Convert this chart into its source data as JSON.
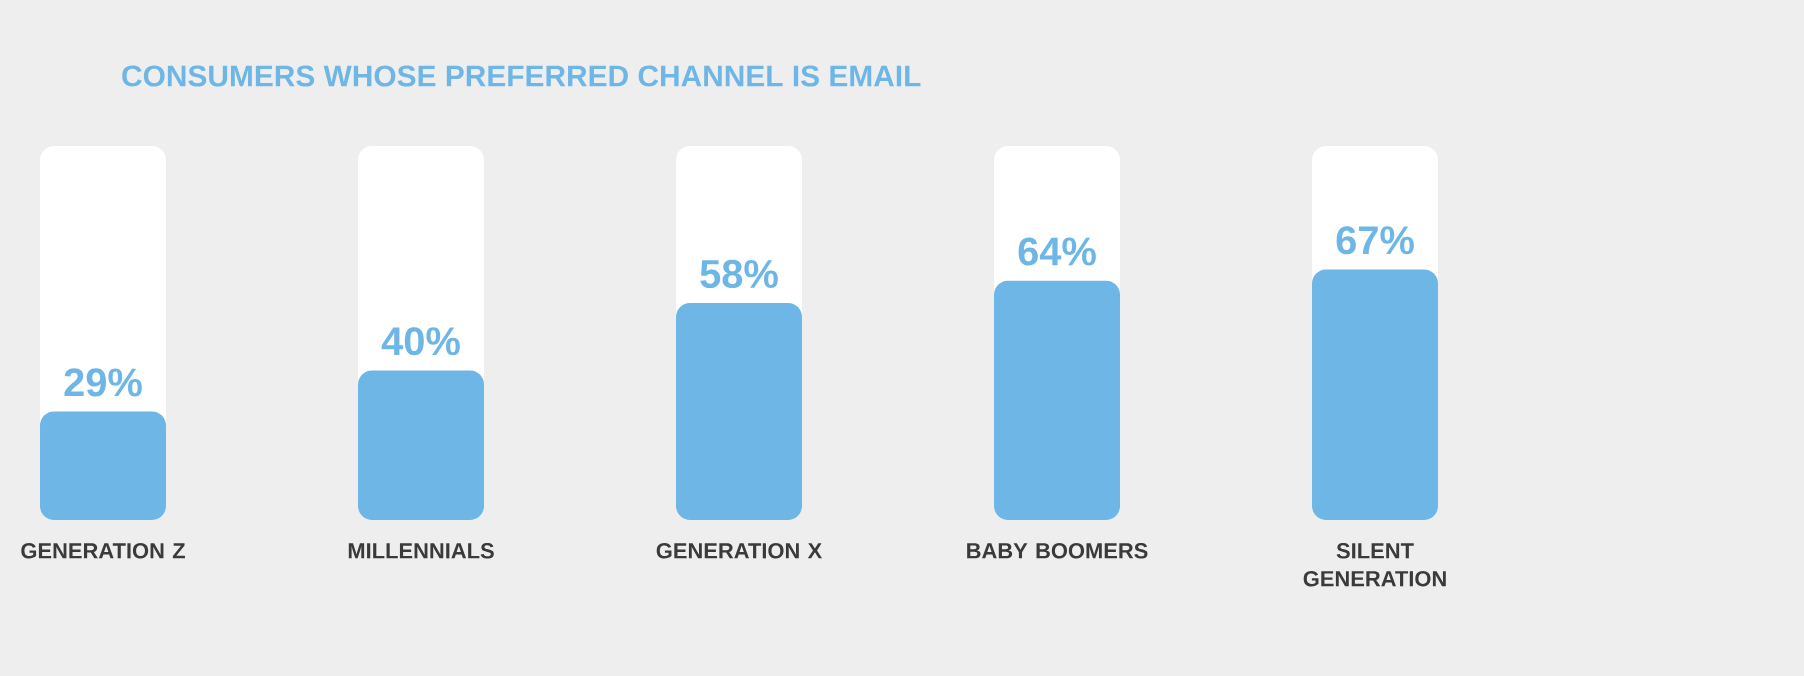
{
  "chart_data": {
    "type": "bar",
    "title": "CONSUMERS WHOSE PREFERRED CHANNEL IS EMAIL",
    "categories": [
      "GENERATION Z",
      "MILLENNIALS",
      "GENERATION X",
      "BABY BOOMERS",
      "SILENT GENERATION"
    ],
    "values": [
      29,
      40,
      58,
      64,
      67
    ],
    "value_labels": [
      "29%",
      "40%",
      "58%",
      "64%",
      "67%"
    ],
    "color": "#6db6e6",
    "ylim": [
      0,
      100
    ]
  }
}
